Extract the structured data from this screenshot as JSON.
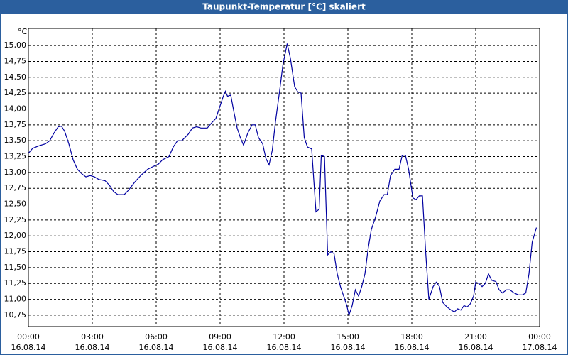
{
  "window_title": "Taupunkt-Temperatur [°C] skaliert",
  "chart_data": {
    "type": "line",
    "ylabel": "°C",
    "x": [
      0,
      0.2,
      0.5,
      0.8,
      1.0,
      1.2,
      1.4,
      1.55,
      1.7,
      1.9,
      2.1,
      2.3,
      2.5,
      2.7,
      2.9,
      3.1,
      3.3,
      3.6,
      3.8,
      4.0,
      4.2,
      4.5,
      4.7,
      5.0,
      5.3,
      5.6,
      5.9,
      6.1,
      6.3,
      6.6,
      6.8,
      7.0,
      7.2,
      7.5,
      7.7,
      7.9,
      8.1,
      8.4,
      8.6,
      8.8,
      9.0,
      9.15,
      9.25,
      9.35,
      9.5,
      9.65,
      9.8,
      9.95,
      10.1,
      10.3,
      10.5,
      10.65,
      10.8,
      11.0,
      11.15,
      11.3,
      11.45,
      11.6,
      11.8,
      11.95,
      12.15,
      12.3,
      12.5,
      12.65,
      12.8,
      12.95,
      13.1,
      13.3,
      13.5,
      13.65,
      13.75,
      13.9,
      14.05,
      14.2,
      14.35,
      14.5,
      14.65,
      14.8,
      14.95,
      15.05,
      15.2,
      15.35,
      15.5,
      15.65,
      15.8,
      15.95,
      16.1,
      16.3,
      16.5,
      16.7,
      16.85,
      17.0,
      17.2,
      17.4,
      17.55,
      17.7,
      17.85,
      18.05,
      18.2,
      18.35,
      18.5,
      18.65,
      18.8,
      19.0,
      19.15,
      19.3,
      19.45,
      19.65,
      19.85,
      20.0,
      20.15,
      20.3,
      20.45,
      20.6,
      20.75,
      20.9,
      21.0,
      21.15,
      21.3,
      21.45,
      21.6,
      21.75,
      21.95,
      22.1,
      22.25,
      22.45,
      22.6,
      22.8,
      23.0,
      23.2,
      23.35,
      23.5,
      23.65,
      23.85
    ],
    "series": [
      {
        "name": "Taupunkt-Temperatur",
        "color": "#0000a0",
        "values": [
          13.3,
          13.38,
          13.42,
          13.45,
          13.5,
          13.62,
          13.72,
          13.73,
          13.65,
          13.45,
          13.2,
          13.05,
          12.98,
          12.93,
          12.95,
          12.93,
          12.89,
          12.87,
          12.8,
          12.7,
          12.65,
          12.65,
          12.72,
          12.85,
          12.96,
          13.05,
          13.1,
          13.13,
          13.2,
          13.25,
          13.4,
          13.5,
          13.5,
          13.6,
          13.7,
          13.72,
          13.7,
          13.7,
          13.78,
          13.85,
          14.05,
          14.2,
          14.28,
          14.2,
          14.22,
          13.95,
          13.7,
          13.55,
          13.43,
          13.62,
          13.75,
          13.75,
          13.55,
          13.45,
          13.22,
          13.12,
          13.35,
          13.8,
          14.3,
          14.7,
          15.03,
          14.8,
          14.35,
          14.27,
          14.25,
          13.55,
          13.4,
          13.37,
          12.38,
          12.42,
          13.27,
          13.25,
          11.7,
          11.75,
          11.72,
          11.4,
          11.2,
          11.05,
          10.9,
          10.75,
          10.9,
          11.15,
          11.05,
          11.2,
          11.4,
          11.8,
          12.1,
          12.3,
          12.55,
          12.65,
          12.65,
          12.95,
          13.05,
          13.05,
          13.27,
          13.27,
          13.05,
          12.6,
          12.57,
          12.63,
          12.63,
          11.75,
          11.0,
          11.2,
          11.27,
          11.2,
          10.95,
          10.88,
          10.83,
          10.8,
          10.85,
          10.83,
          10.9,
          10.88,
          10.93,
          11.05,
          11.27,
          11.25,
          11.2,
          11.25,
          11.4,
          11.3,
          11.28,
          11.15,
          11.1,
          11.15,
          11.15,
          11.1,
          11.07,
          11.07,
          11.1,
          11.4,
          11.9,
          12.13
        ]
      }
    ],
    "xlim": [
      0,
      24
    ],
    "xticks": [
      {
        "value": 0,
        "label": "00:00",
        "sublabel": "16.08.14"
      },
      {
        "value": 3,
        "label": "03:00",
        "sublabel": "16.08.14"
      },
      {
        "value": 6,
        "label": "06:00",
        "sublabel": "16.08.14"
      },
      {
        "value": 9,
        "label": "09:00",
        "sublabel": "16.08.14"
      },
      {
        "value": 12,
        "label": "12:00",
        "sublabel": "16.08.14"
      },
      {
        "value": 15,
        "label": "15:00",
        "sublabel": "16.08.14"
      },
      {
        "value": 18,
        "label": "18:00",
        "sublabel": "16.08.14"
      },
      {
        "value": 21,
        "label": "21:00",
        "sublabel": "16.08.14"
      },
      {
        "value": 24,
        "label": "00:00",
        "sublabel": "17.08.14"
      }
    ],
    "ylim": [
      10.57,
      15.27
    ],
    "yticks": [
      {
        "value": 10.75,
        "label": "10,75"
      },
      {
        "value": 11,
        "label": "11,00"
      },
      {
        "value": 11.25,
        "label": "11,25"
      },
      {
        "value": 11.5,
        "label": "11,50"
      },
      {
        "value": 11.75,
        "label": "11,75"
      },
      {
        "value": 12,
        "label": "12,00"
      },
      {
        "value": 12.25,
        "label": "12,25"
      },
      {
        "value": 12.5,
        "label": "12,50"
      },
      {
        "value": 12.75,
        "label": "12,75"
      },
      {
        "value": 13,
        "label": "13,00"
      },
      {
        "value": 13.25,
        "label": "13,25"
      },
      {
        "value": 13.5,
        "label": "13,50"
      },
      {
        "value": 13.75,
        "label": "13,75"
      },
      {
        "value": 14,
        "label": "14,00"
      },
      {
        "value": 14.25,
        "label": "14,25"
      },
      {
        "value": 14.5,
        "label": "14,50"
      },
      {
        "value": 14.75,
        "label": "14,75"
      },
      {
        "value": 15,
        "label": "15,00"
      }
    ],
    "grid": true
  }
}
